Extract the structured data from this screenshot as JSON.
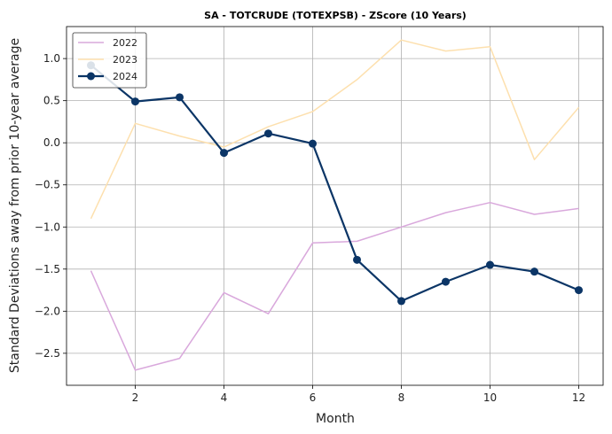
{
  "chart_data": {
    "type": "line",
    "title": "SA - TOTCRUDE (TOTEXPSB) - ZScore (10 Years)",
    "xlabel": "Month",
    "ylabel": "Standard Deviations away from prior 10-year average",
    "x": [
      1,
      2,
      3,
      4,
      5,
      6,
      7,
      8,
      9,
      10,
      11,
      12
    ],
    "xlim": [
      0.45,
      12.55
    ],
    "ylim": [
      -2.88,
      1.38
    ],
    "xticks": [
      2,
      4,
      6,
      8,
      10,
      12
    ],
    "xtick_labels": [
      "2",
      "4",
      "6",
      "8",
      "10",
      "12"
    ],
    "yticks": [
      1.0,
      0.5,
      0.0,
      -0.5,
      -1.0,
      -1.5,
      -2.0,
      -2.5
    ],
    "ytick_labels": [
      "1.0",
      "0.5",
      "0.0",
      "−0.5",
      "−1.0",
      "−1.5",
      "−2.0",
      "−2.5"
    ],
    "grid": true,
    "legend_position": "top-left",
    "series": [
      {
        "name": "2022",
        "color": "#d9a8dc",
        "width": 1.5,
        "markers": false,
        "values": [
          -1.52,
          -2.7,
          -2.56,
          -1.78,
          -2.03,
          -1.19,
          -1.17,
          -1.0,
          -0.83,
          -0.71,
          -0.85,
          -0.78
        ]
      },
      {
        "name": "2023",
        "color": "#fde0ae",
        "width": 1.5,
        "markers": false,
        "values": [
          -0.9,
          0.23,
          0.08,
          -0.05,
          0.19,
          0.37,
          0.75,
          1.22,
          1.09,
          1.14,
          -0.2,
          0.42
        ]
      },
      {
        "name": "2024",
        "color": "#0b3566",
        "width": 2.2,
        "markers": true,
        "values": [
          0.92,
          0.49,
          0.54,
          -0.12,
          0.11,
          -0.01,
          -1.39,
          -1.88,
          -1.65,
          -1.45,
          -1.53,
          -1.75
        ]
      }
    ]
  }
}
